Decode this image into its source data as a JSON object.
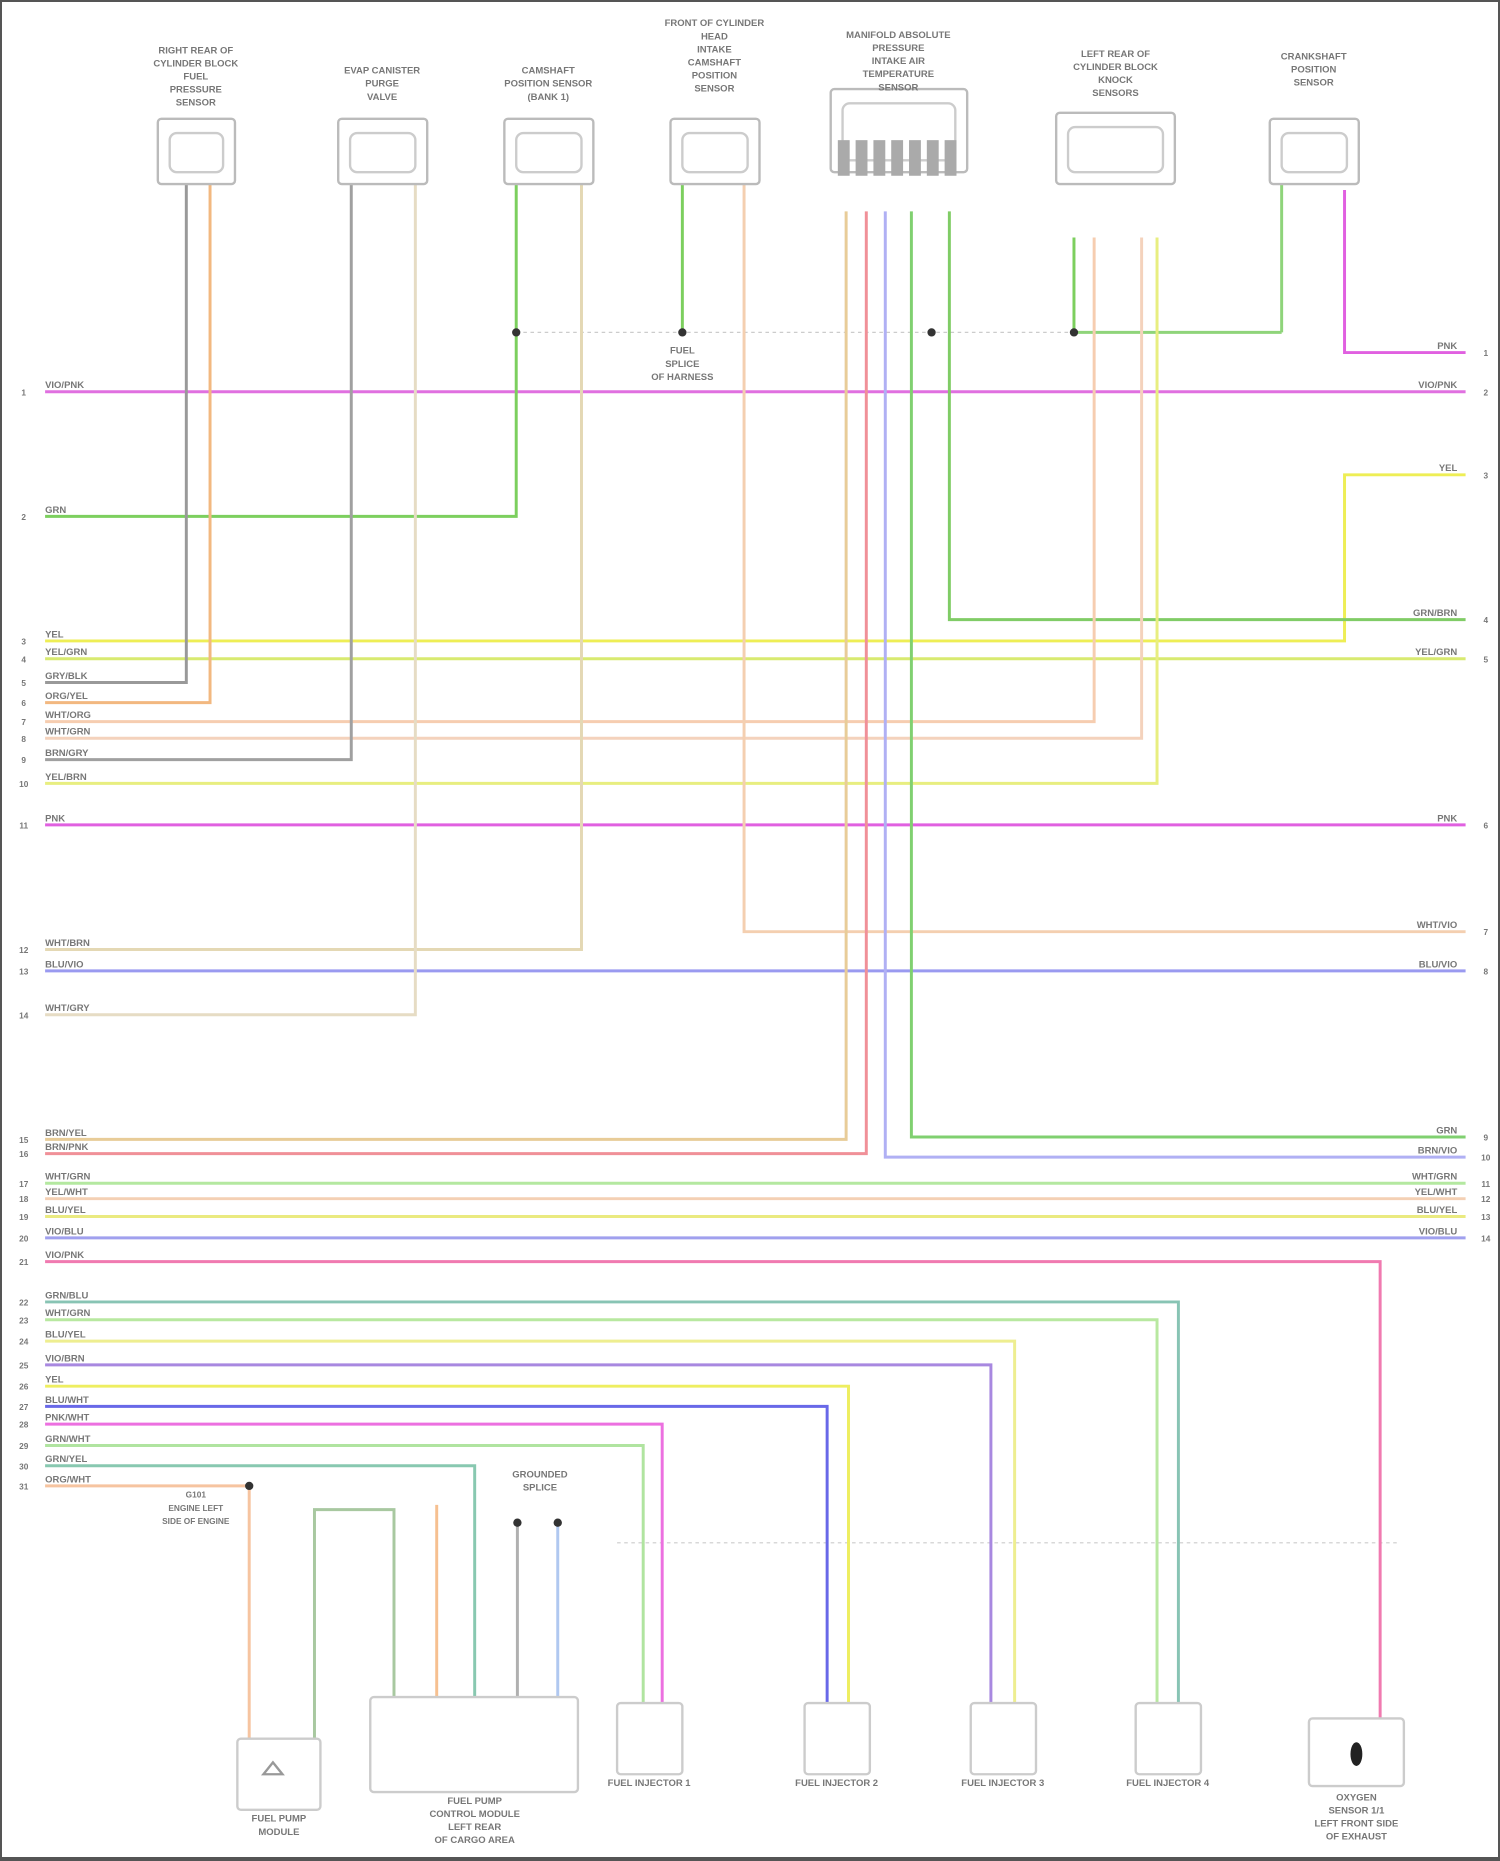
{
  "diagram": {
    "top_components": [
      {
        "id": "c1",
        "label": [
          "RIGHT REAR OF",
          "CYLINDER BLOCK",
          "FUEL",
          "PRESSURE",
          "SENSOR"
        ]
      },
      {
        "id": "c2",
        "label": [
          "EVAP CANISTER",
          "PURGE",
          "VALVE"
        ]
      },
      {
        "id": "c3",
        "label": [
          "CAMSHAFT",
          "POSITION SENSOR",
          "(BANK 1)"
        ]
      },
      {
        "id": "c4",
        "label": [
          "FRONT OF CYLINDER",
          "HEAD",
          "INTAKE",
          "CAMSHAFT",
          "POSITION",
          "SENSOR"
        ]
      },
      {
        "id": "c5",
        "label": [
          "MANIFOLD ABSOLUTE",
          "PRESSURE",
          "INTAKE AIR",
          "TEMPERATURE",
          "SENSOR"
        ]
      },
      {
        "id": "c6",
        "label": [
          "LEFT REAR OF",
          "CYLINDER BLOCK",
          "KNOCK",
          "SENSORS"
        ]
      },
      {
        "id": "c7",
        "label": [
          "CRANKSHAFT",
          "POSITION",
          "SENSOR"
        ]
      }
    ],
    "bottom_components": [
      {
        "id": "fuel-pump-module",
        "label": [
          "FUEL PUMP",
          "MODULE"
        ]
      },
      {
        "id": "fuel-pump-control-module",
        "label": [
          "FUEL PUMP",
          "CONTROL MODULE",
          "LEFT REAR",
          "OF CARGO AREA"
        ]
      },
      {
        "id": "injector-1",
        "label": [
          "FUEL INJECTOR 1"
        ]
      },
      {
        "id": "injector-2",
        "label": [
          "FUEL INJECTOR 2"
        ]
      },
      {
        "id": "injector-3",
        "label": [
          "FUEL INJECTOR 3"
        ]
      },
      {
        "id": "injector-4",
        "label": [
          "FUEL INJECTOR 4"
        ]
      },
      {
        "id": "oxygen-sensor",
        "label": [
          "OXYGEN",
          "SENSOR 1/1",
          "LEFT FRONT SIDE",
          "OF EXHAUST"
        ]
      }
    ],
    "splices": [
      {
        "id": "top-splice",
        "label": [
          "FUEL",
          "SPLICE",
          "OF HARNESS"
        ]
      },
      {
        "id": "grounded-splice",
        "label": [
          "GROUNDED",
          "SPLICE"
        ]
      },
      {
        "id": "ground-label",
        "label": [
          "G101",
          "ENGINE LEFT",
          "SIDE OF ENGINE"
        ]
      }
    ],
    "wires": [
      {
        "color": "#e060e0",
        "left": "",
        "right": "PNK",
        "pin_left": "",
        "pin_right": "1"
      },
      {
        "color": "#e070e0",
        "left": "VIO/PNK",
        "right": "VIO/PNK",
        "pin_left": "1",
        "pin_right": "2"
      },
      {
        "color": "#7ccf5e",
        "left": "GRN",
        "right": "",
        "pin_left": "2",
        "pin_right": ""
      },
      {
        "color": "#eeee55",
        "left": "YEL",
        "right": "YEL",
        "pin_left": "3",
        "pin_right": "3"
      },
      {
        "color": "#80cc66",
        "left": "",
        "right": "GRN/BRN",
        "pin_left": "",
        "pin_right": "4"
      },
      {
        "color": "#d8ea70",
        "left": "YEL/GRN",
        "right": "YEL/GRN",
        "pin_left": "4",
        "pin_right": "5"
      },
      {
        "color": "#999999",
        "left": "GRY/BLK",
        "right": "",
        "pin_left": "5",
        "pin_right": ""
      },
      {
        "color": "#f2b880",
        "left": "ORG/YEL",
        "right": "",
        "pin_left": "6",
        "pin_right": ""
      },
      {
        "color": "#f6cdb0",
        "left": "WHT/ORG",
        "right": "",
        "pin_left": "7",
        "pin_right": ""
      },
      {
        "color": "#f4d2bc",
        "left": "WHT/GRN",
        "right": "",
        "pin_left": "8",
        "pin_right": ""
      },
      {
        "color": "#a0a0a0",
        "left": "BRN/GRY",
        "right": "",
        "pin_left": "9",
        "pin_right": ""
      },
      {
        "color": "#e8ee80",
        "left": "YEL/BRN",
        "right": "",
        "pin_left": "10",
        "pin_right": ""
      },
      {
        "color": "#e060e0",
        "left": "PNK",
        "right": "PNK",
        "pin_left": "11",
        "pin_right": "6"
      },
      {
        "color": "#f4cfb0",
        "left": "",
        "right": "WHT/VIO",
        "pin_left": "",
        "pin_right": "7"
      },
      {
        "color": "#e4d8b4",
        "left": "WHT/BRN",
        "right": "",
        "pin_left": "12",
        "pin_right": ""
      },
      {
        "color": "#9a9af0",
        "left": "BLU/VIO",
        "right": "BLU/VIO",
        "pin_left": "13",
        "pin_right": "8"
      },
      {
        "color": "#e6dcc4",
        "left": "WHT/GRY",
        "right": "",
        "pin_left": "14",
        "pin_right": ""
      },
      {
        "color": "#80d070",
        "left": "",
        "right": "GRN",
        "pin_left": "",
        "pin_right": "9"
      },
      {
        "color": "#e8cc98",
        "left": "BRN/YEL",
        "right": "",
        "pin_left": "15",
        "pin_right": ""
      },
      {
        "color": "#f09098",
        "left": "BRN/PNK",
        "right": "",
        "pin_left": "16",
        "pin_right": ""
      },
      {
        "color": "#b0b0f4",
        "left": "",
        "right": "BRN/VIO",
        "pin_left": "",
        "pin_right": "10"
      },
      {
        "color": "#b4e8a0",
        "left": "WHT/GRN",
        "right": "WHT/GRN",
        "pin_left": "17",
        "pin_right": "11"
      },
      {
        "color": "#f4d0b4",
        "left": "YEL/WHT",
        "right": "YEL/WHT",
        "pin_left": "18",
        "pin_right": "12"
      },
      {
        "color": "#eaea80",
        "left": "BLU/YEL",
        "right": "BLU/YEL",
        "pin_left": "19",
        "pin_right": "13"
      },
      {
        "color": "#a0a0ee",
        "left": "VIO/BLU",
        "right": "VIO/BLU",
        "pin_left": "20",
        "pin_right": "14"
      },
      {
        "color": "#f07ab0",
        "left": "VIO/PNK",
        "right": "",
        "pin_left": "21",
        "pin_right": ""
      },
      {
        "color": "#88c4b4",
        "left": "GRN/BLU",
        "right": "",
        "pin_left": "22",
        "pin_right": ""
      },
      {
        "color": "#b8e8a0",
        "left": "WHT/GRN",
        "right": "",
        "pin_left": "23",
        "pin_right": ""
      },
      {
        "color": "#eeee90",
        "left": "BLU/YEL",
        "right": "",
        "pin_left": "24",
        "pin_right": ""
      },
      {
        "color": "#a888e0",
        "left": "VIO/BRN",
        "right": "",
        "pin_left": "25",
        "pin_right": ""
      },
      {
        "color": "#eeee60",
        "left": "YEL",
        "right": "",
        "pin_left": "26",
        "pin_right": ""
      },
      {
        "color": "#6868e8",
        "left": "BLU/WHT",
        "right": "",
        "pin_left": "27",
        "pin_right": ""
      },
      {
        "color": "#ec70e0",
        "left": "PNK/WHT",
        "right": "",
        "pin_left": "28",
        "pin_right": ""
      },
      {
        "color": "#b0e4a0",
        "left": "GRN/WHT",
        "right": "",
        "pin_left": "29",
        "pin_right": ""
      },
      {
        "color": "#88c8b0",
        "left": "GRN/YEL",
        "right": "",
        "pin_left": "30",
        "pin_right": ""
      },
      {
        "color": "#f6c4a0",
        "left": "ORG/WHT",
        "right": "",
        "pin_left": "31",
        "pin_right": ""
      },
      {
        "color": "#a8c8a0",
        "left": "",
        "right": "",
        "pin_left": "",
        "pin_right": ""
      },
      {
        "color": "#f6c090",
        "left": "",
        "right": "",
        "pin_left": "",
        "pin_right": ""
      },
      {
        "color": "#b0c8f0",
        "left": "",
        "right": "",
        "pin_left": "",
        "pin_right": ""
      },
      {
        "color": "#b0b0b0",
        "left": "",
        "right": "",
        "pin_left": "",
        "pin_right": ""
      }
    ]
  }
}
